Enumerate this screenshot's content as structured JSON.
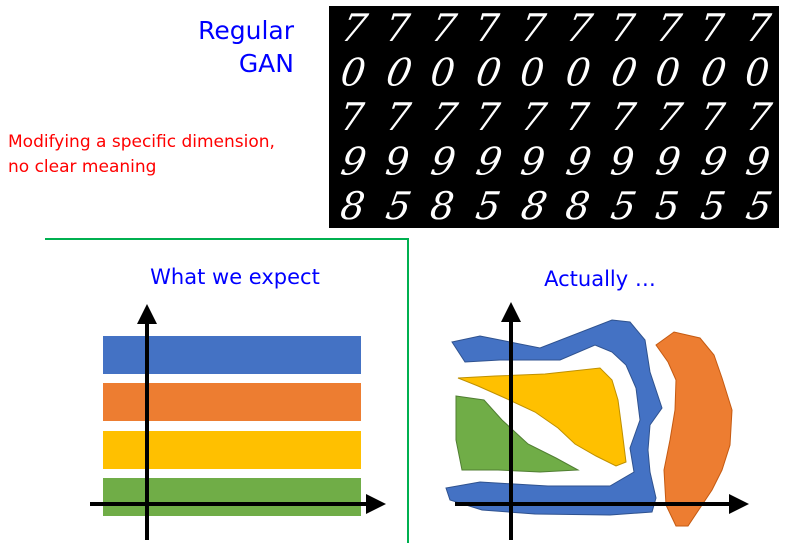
{
  "header": {
    "title_line1": "Regular",
    "title_line2": "GAN",
    "title_color": "#0000ff"
  },
  "note": {
    "line1": "Modifying a specific dimension,",
    "line2": "no clear meaning",
    "color": "#ff0000"
  },
  "digit_grid": {
    "rows": [
      [
        "7",
        "7",
        "7",
        "7",
        "7",
        "7",
        "7",
        "7",
        "7",
        "7"
      ],
      [
        "0",
        "0",
        "0",
        "0",
        "0",
        "0",
        "0",
        "0",
        "0",
        "0"
      ],
      [
        "7",
        "7",
        "7",
        "7",
        "7",
        "7",
        "7",
        "7",
        "7",
        "7"
      ],
      [
        "9",
        "9",
        "9",
        "9",
        "9",
        "9",
        "9",
        "9",
        "9",
        "9"
      ],
      [
        "8",
        "5",
        "8",
        "5",
        "8",
        "8",
        "5",
        "5",
        "5",
        "5"
      ]
    ],
    "background": "#000000",
    "foreground": "#ffffff"
  },
  "expect": {
    "caption": "What we expect",
    "caption_color": "#0000ff",
    "frame_color": "#00b050",
    "bands": [
      {
        "name": "blue",
        "color": "#4472c4"
      },
      {
        "name": "orange",
        "color": "#ed7d31"
      },
      {
        "name": "yellow",
        "color": "#ffc000"
      },
      {
        "name": "green",
        "color": "#70ad47"
      }
    ]
  },
  "actual": {
    "caption": "Actually …",
    "caption_color": "#0000ff",
    "regions": [
      {
        "name": "blue",
        "color": "#4472c4"
      },
      {
        "name": "orange",
        "color": "#ed7d31"
      },
      {
        "name": "yellow",
        "color": "#ffc000"
      },
      {
        "name": "green",
        "color": "#70ad47"
      }
    ]
  }
}
